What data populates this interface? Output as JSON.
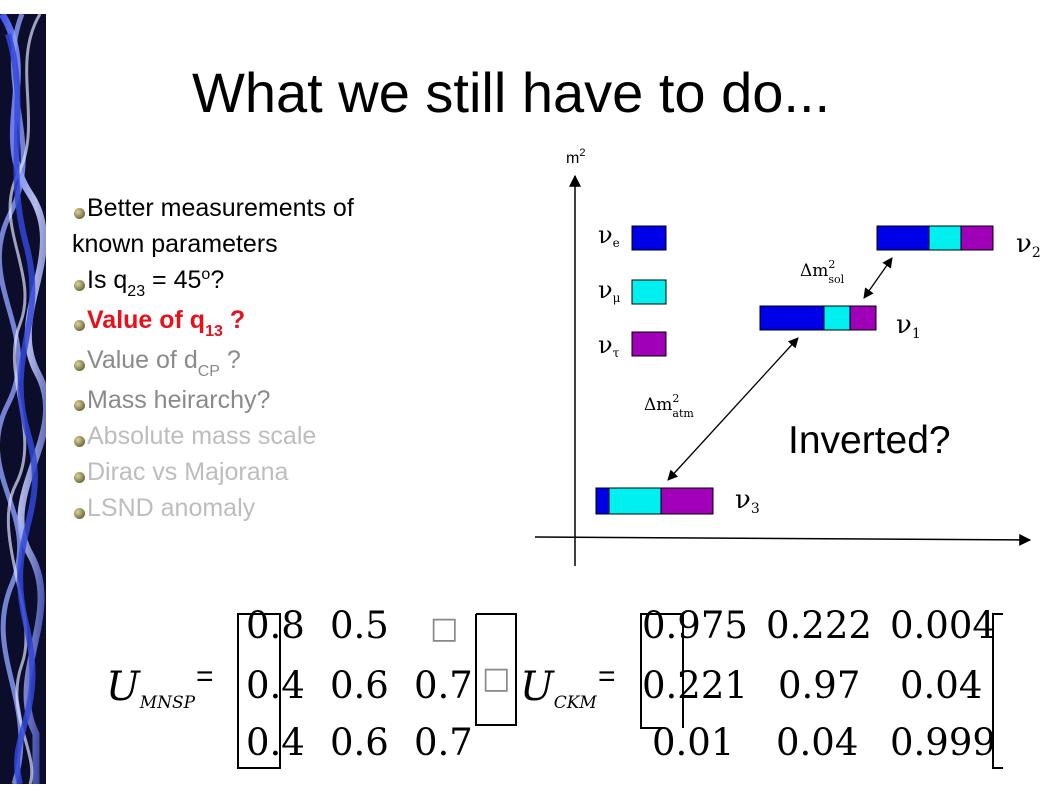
{
  "slide": {
    "title": "What we still have to do..."
  },
  "bullets": [
    {
      "prefix": "Better measurements of",
      "continuation": "known parameters",
      "color": "#000000"
    },
    {
      "prefix": "Is q",
      "sub": "23",
      "suffix": " = 45",
      "sup": "o",
      "tail": "?",
      "color": "#000000"
    },
    {
      "prefix": "Value of q",
      "sub": "13",
      "tail": "?",
      "color": "#e8101a"
    },
    {
      "prefix": "Value of d",
      "sub": "CP",
      "tail": "?",
      "color": "#8a8a8a"
    },
    {
      "prefix": "Mass heirarchy?",
      "color": "#8a8a8a"
    },
    {
      "prefix": "Absolute mass scale",
      "color": "#bdbdbd"
    },
    {
      "prefix": "Dirac vs Majorana",
      "color": "#bdbdbd"
    },
    {
      "prefix": "LSND anomaly",
      "color": "#bdbdbd"
    }
  ],
  "diagram": {
    "axis_label": "m",
    "axis_label_sup": "2",
    "flavor_labels": {
      "e": "e",
      "mu": "μ",
      "tau": "τ"
    },
    "mass_labels": {
      "nu2": "2",
      "nu1": "1",
      "nu3": "3"
    },
    "delta_sol_sub": "sol",
    "delta_atm_sub": "atm",
    "delta_sup": "2",
    "delta_prefix": "Δm",
    "nu_symbol": "ν",
    "note": "Inverted?",
    "colors": {
      "electron": "#0000e8",
      "muon": "#00f0f0",
      "tau": "#a000b8"
    }
  },
  "matrices": {
    "mnsp": {
      "symbol": "U",
      "subscript": "MNSP",
      "equals": "=",
      "rows": [
        [
          "0.8",
          "0.5",
          "□"
        ],
        [
          "0.4",
          "0.6",
          "0.7"
        ],
        [
          "0.4",
          "0.6",
          "0.7"
        ]
      ],
      "tail_glyph": "□"
    },
    "ckm": {
      "symbol": "U",
      "subscript": "CKM",
      "equals": "=",
      "rows": [
        [
          "0.975",
          "0.222",
          "0.004"
        ],
        [
          "0.221",
          "0.97",
          "0.04"
        ],
        [
          "0.01",
          "0.04",
          "0.999"
        ]
      ]
    }
  }
}
